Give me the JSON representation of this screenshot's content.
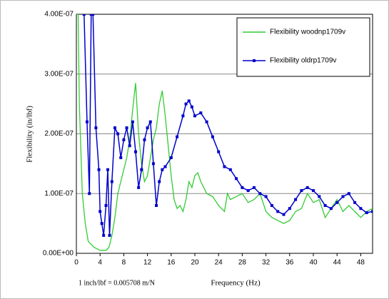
{
  "chart_data": {
    "type": "line",
    "x_label": "Frequency (Hz)",
    "y_label": "Flexibility (in/lbf)",
    "note": "1 inch/lbf = 0.005708 m/N",
    "xlim": [
      0,
      50
    ],
    "ylim": [
      0,
      4e-07
    ],
    "xticks": [
      0,
      4,
      8,
      12,
      16,
      20,
      24,
      28,
      32,
      36,
      40,
      44,
      48
    ],
    "yticks": [
      {
        "value": 0,
        "label": "0.00E+00"
      },
      {
        "value": 1e-07,
        "label": "1.00E-07"
      },
      {
        "value": 2e-07,
        "label": "2.00E-07"
      },
      {
        "value": 3e-07,
        "label": "3.00E-07"
      },
      {
        "value": 4e-07,
        "label": "4.00E-07"
      }
    ],
    "grid": true,
    "legend": "top-right",
    "series": [
      {
        "name": "Flexibility woodnp1709v",
        "color": "#33cc33",
        "marker": "none",
        "x": [
          0,
          0.3,
          0.5,
          1,
          1.5,
          2,
          3,
          4,
          5,
          5.5,
          6,
          6.5,
          7,
          7.5,
          8,
          8.5,
          9,
          9.5,
          10,
          10.5,
          11,
          11.5,
          12,
          12.5,
          13,
          13.5,
          14,
          14.5,
          15,
          15.5,
          16,
          16.5,
          17,
          17.5,
          18,
          18.5,
          19,
          19.5,
          20,
          20.5,
          21,
          22,
          23,
          24,
          25,
          25.5,
          26,
          27,
          28,
          29,
          30,
          31,
          32,
          33,
          34,
          35,
          36,
          37,
          38,
          39,
          40,
          41,
          42,
          43,
          44,
          45,
          46,
          47,
          48,
          49,
          50
        ],
        "values": [
          4e-07,
          4e-07,
          2.5e-07,
          1e-07,
          5e-08,
          2e-08,
          1e-08,
          5e-09,
          5e-09,
          1e-08,
          3e-08,
          6e-08,
          1e-07,
          1.2e-07,
          1.4e-07,
          1.6e-07,
          1.9e-07,
          2.4e-07,
          2.85e-07,
          2e-07,
          1.5e-07,
          1.2e-07,
          1.3e-07,
          1.6e-07,
          1.9e-07,
          2.1e-07,
          2.5e-07,
          2.72e-07,
          2.3e-07,
          1.8e-07,
          1.3e-07,
          9e-08,
          7.5e-08,
          8e-08,
          7e-08,
          9e-08,
          1.2e-07,
          1.1e-07,
          1.3e-07,
          1.35e-07,
          1.2e-07,
          1e-07,
          9.5e-08,
          8e-08,
          7e-08,
          1e-07,
          9e-08,
          9.5e-08,
          1e-07,
          8.5e-08,
          9e-08,
          1e-07,
          7e-08,
          6e-08,
          5.5e-08,
          5e-08,
          5.5e-08,
          7e-08,
          7.5e-08,
          1e-07,
          8.5e-08,
          9e-08,
          6e-08,
          7.5e-08,
          9e-08,
          7e-08,
          8e-08,
          7e-08,
          6e-08,
          7e-08,
          7.5e-08
        ]
      },
      {
        "name": "Flexibility oldrp1709v",
        "color": "#0000cc",
        "marker": "square",
        "x": [
          1.3,
          1.8,
          2.2,
          2.5,
          2.8,
          3.3,
          3.8,
          4,
          4.3,
          4.6,
          5,
          5.3,
          5.6,
          6,
          6.5,
          7,
          7.5,
          8,
          8.5,
          9,
          9.5,
          10,
          10.5,
          11,
          11.5,
          12,
          12.5,
          13,
          13.5,
          14,
          14.5,
          15,
          16,
          17,
          18,
          18.5,
          19,
          19.5,
          20,
          21,
          22,
          23,
          24,
          25,
          26,
          27,
          28,
          29,
          30,
          31,
          32,
          33,
          34,
          35,
          36,
          37,
          38,
          39,
          40,
          41,
          42,
          43,
          44,
          45,
          46,
          47,
          48,
          49,
          50
        ],
        "values": [
          4e-07,
          2.2e-07,
          1e-07,
          4e-07,
          4e-07,
          2.1e-07,
          1.4e-07,
          7e-08,
          5e-08,
          3e-08,
          8e-08,
          1.4e-07,
          3e-08,
          1.2e-07,
          2.1e-07,
          2e-07,
          1.6e-07,
          1.9e-07,
          2.1e-07,
          1.8e-07,
          2.2e-07,
          1.7e-07,
          1.1e-07,
          1.4e-07,
          1.9e-07,
          2.1e-07,
          2.2e-07,
          1.5e-07,
          8e-08,
          1.2e-07,
          1.4e-07,
          1.45e-07,
          1.6e-07,
          1.95e-07,
          2.3e-07,
          2.5e-07,
          2.55e-07,
          2.45e-07,
          2.3e-07,
          2.35e-07,
          2.2e-07,
          1.95e-07,
          1.7e-07,
          1.45e-07,
          1.4e-07,
          1.25e-07,
          1.1e-07,
          1.05e-07,
          1.1e-07,
          1e-07,
          9.5e-08,
          8e-08,
          7e-08,
          6.5e-08,
          7.5e-08,
          9e-08,
          1.05e-07,
          1.1e-07,
          1.05e-07,
          9.5e-08,
          8e-08,
          7.5e-08,
          8.5e-08,
          9.5e-08,
          1e-07,
          8.5e-08,
          7.5e-08,
          6.8e-08,
          7e-08
        ]
      }
    ]
  }
}
